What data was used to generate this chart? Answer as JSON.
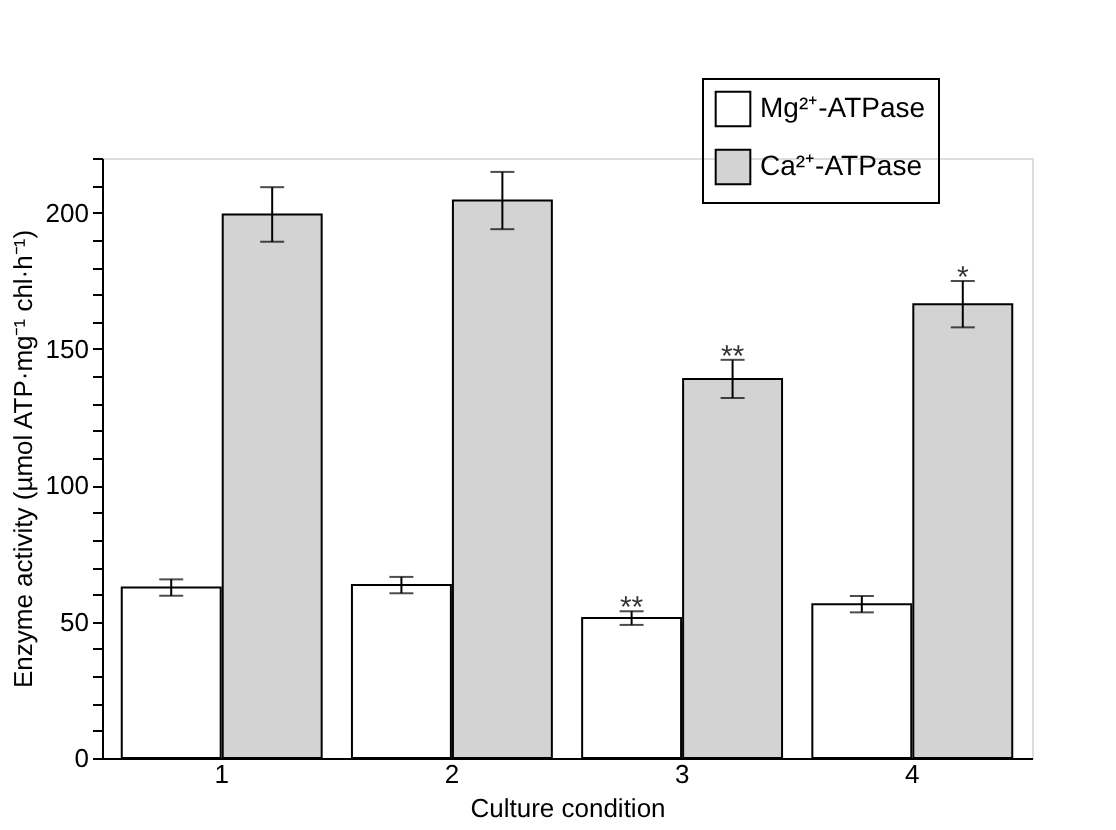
{
  "chart_data": {
    "type": "bar",
    "xlabel": "Culture condition",
    "ylabel": "Enzyme activity (µmol ATP·mg⁻¹ chl·h⁻¹)",
    "categories": [
      "1",
      "2",
      "3",
      "4"
    ],
    "series": [
      {
        "name": "Mg²⁺-ATPase",
        "color": "#ffffff",
        "values": [
          62.5,
          63.4,
          51.3,
          56.4
        ],
        "errors": [
          3,
          3,
          2.5,
          3
        ]
      },
      {
        "name": "Ca²⁺-ATPase",
        "color": "#d3d3d3",
        "values": [
          199.3,
          204.4,
          139,
          166.4
        ],
        "errors": [
          10,
          10.5,
          7,
          8.5
        ]
      }
    ],
    "ylim": [
      0,
      220
    ],
    "yticks": [
      0,
      {
        "value": 10,
        "label": null
      },
      {
        "value": 20,
        "label": null
      },
      {
        "value": 30,
        "label": null
      },
      {
        "value": 40,
        "label": null
      },
      50,
      {
        "value": 60,
        "label": null
      },
      {
        "value": 70,
        "label": null
      },
      {
        "value": 80,
        "label": null
      },
      {
        "value": 90,
        "label": null
      },
      100,
      {
        "value": 110,
        "label": null
      },
      {
        "value": 120,
        "label": null
      },
      {
        "value": 130,
        "label": null
      },
      {
        "value": 140,
        "label": null
      },
      150,
      {
        "value": 160,
        "label": null
      },
      {
        "value": 170,
        "label": null
      },
      {
        "value": 180,
        "label": null
      },
      {
        "value": 190,
        "label": null
      },
      200,
      {
        "value": 210,
        "label": null
      },
      {
        "value": 220,
        "label": null
      }
    ],
    "annotations": [
      {
        "text": "**",
        "x": "3",
        "y": 51.3
      },
      {
        "text": "**",
        "x": "3",
        "y": 139
      },
      {
        "text": "*",
        "x": "4",
        "y": 166.4
      }
    ],
    "grid": false,
    "legend": "top right"
  }
}
